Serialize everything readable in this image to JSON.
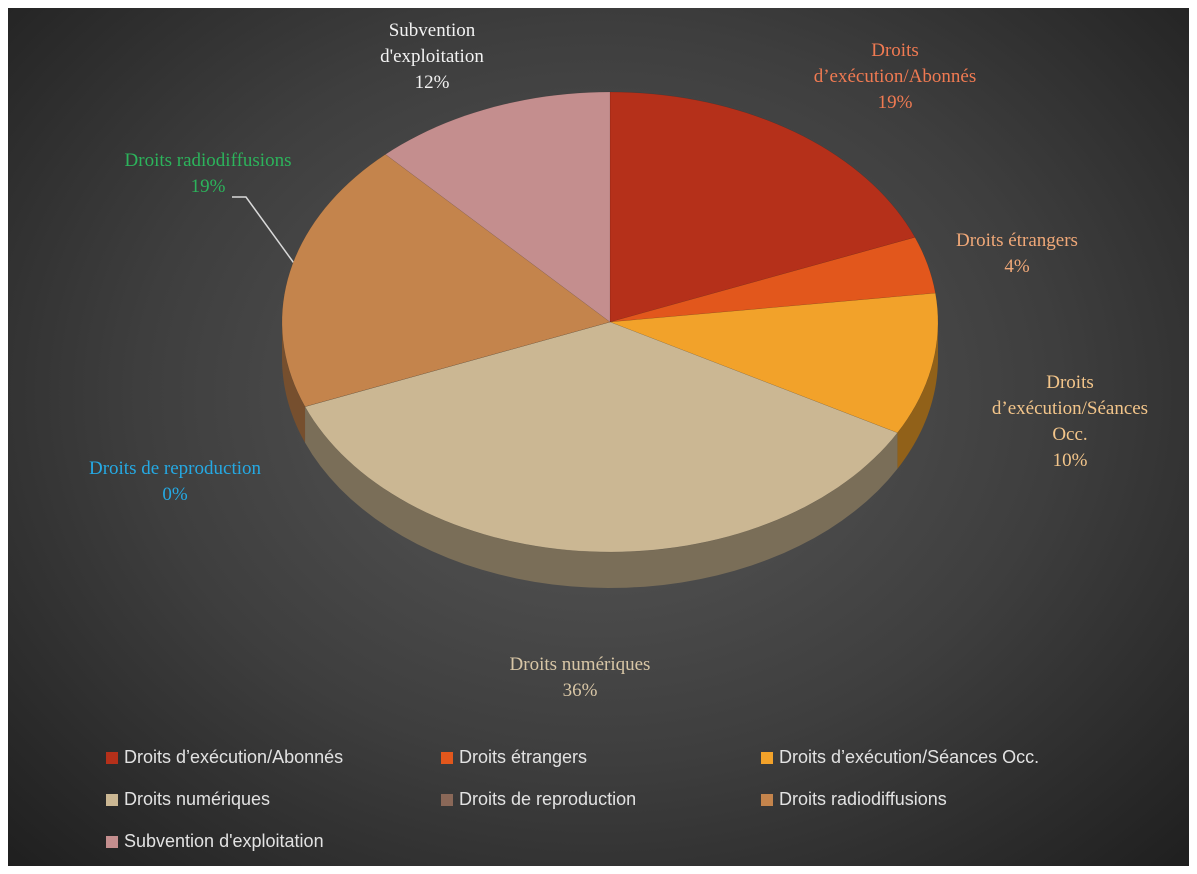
{
  "chart_data": {
    "type": "pie",
    "categories": [
      "Droits d’exécution/Abonnés",
      "Droits étrangers",
      "Droits d’exécution/Séances Occ.",
      "Droits numériques",
      "Droits de reproduction",
      "Droits radiodiffusions",
      "Subvention d'exploitation"
    ],
    "values": [
      19,
      4,
      10,
      36,
      0,
      19,
      12
    ],
    "value_labels": [
      "19%",
      "4%",
      "10%",
      "36%",
      "0%",
      "19%",
      "12%"
    ],
    "colors": [
      "#b5301a",
      "#e2571c",
      "#f2a22a",
      "#cbb793",
      "#8a6858",
      "#c4844c",
      "#c48e8e"
    ],
    "label_colors": [
      "#f07a52",
      "#f0a878",
      "#f3c58a",
      "#d8c6a6",
      "#25a9e3",
      "#2cb35b",
      "#f2f2f2"
    ],
    "legend": "bottom"
  }
}
